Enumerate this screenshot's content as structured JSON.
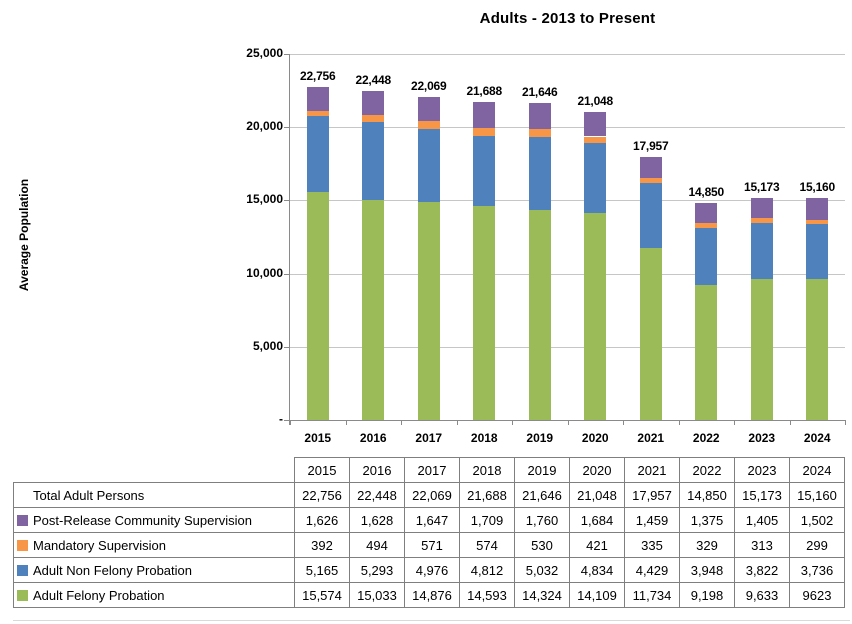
{
  "title": "Adults - 2013 to Present",
  "y_axis": {
    "title": "Average Population",
    "tick_labels": [
      "25,000",
      "20,000",
      "15,000",
      "10,000",
      "5,000",
      "-"
    ]
  },
  "colors": {
    "adult_felony_probation": "#9BBB59",
    "adult_non_felony_probation": "#4F81BD",
    "mandatory_supervision": "#F79646",
    "post_release_community_supervision": "#8064A2",
    "gridline": "#C6C6C6",
    "axis": "#8A8A8A",
    "table_border": "#7F7F7F"
  },
  "chart_data": {
    "type": "bar",
    "stacked": true,
    "title": "Adults - 2013 to Present",
    "xlabel": "",
    "ylabel": "Average Population",
    "ylim": [
      0,
      25000
    ],
    "grid": true,
    "legend_position": "table-rows-below",
    "categories": [
      "2015",
      "2016",
      "2017",
      "2018",
      "2019",
      "2020",
      "2021",
      "2022",
      "2023",
      "2024"
    ],
    "series": [
      {
        "name": "Adult Felony Probation",
        "color": "#9BBB59",
        "values": [
          15574,
          15033,
          14876,
          14593,
          14324,
          14109,
          11734,
          9198,
          9633,
          9623
        ]
      },
      {
        "name": "Adult Non Felony Probation",
        "color": "#4F81BD",
        "values": [
          5165,
          5293,
          4976,
          4812,
          5032,
          4834,
          4429,
          3948,
          3822,
          3736
        ]
      },
      {
        "name": "Mandatory Supervision",
        "color": "#F79646",
        "values": [
          392,
          494,
          571,
          574,
          530,
          421,
          335,
          329,
          313,
          299
        ]
      },
      {
        "name": "Post-Release Community Supervision",
        "color": "#8064A2",
        "values": [
          1626,
          1628,
          1647,
          1709,
          1760,
          1684,
          1459,
          1375,
          1405,
          1502
        ]
      }
    ],
    "totals": [
      22756,
      22448,
      22069,
      21688,
      21646,
      21048,
      17957,
      14850,
      15173,
      15160
    ],
    "total_labels": [
      "22,756",
      "22,448",
      "22,069",
      "21,688",
      "21,646",
      "21,048",
      "17,957",
      "14,850",
      "15,173",
      "15,160"
    ]
  },
  "table": {
    "header_years": [
      "2015",
      "2016",
      "2017",
      "2018",
      "2019",
      "2020",
      "2021",
      "2022",
      "2023",
      "2024"
    ],
    "rows": [
      {
        "label": "Total Adult Persons",
        "swatch": null,
        "values": [
          "22,756",
          "22,448",
          "22,069",
          "21,688",
          "21,646",
          "21,048",
          "17,957",
          "14,850",
          "15,173",
          "15,160"
        ]
      },
      {
        "label": "Post-Release Community Supervision",
        "swatch": "#8064A2",
        "values": [
          "1,626",
          "1,628",
          "1,647",
          "1,709",
          "1,760",
          "1,684",
          "1,459",
          "1,375",
          "1,405",
          "1,502"
        ]
      },
      {
        "label": "Mandatory Supervision",
        "swatch": "#F79646",
        "values": [
          "392",
          "494",
          "571",
          "574",
          "530",
          "421",
          "335",
          "329",
          "313",
          "299"
        ]
      },
      {
        "label": "Adult Non Felony Probation",
        "swatch": "#4F81BD",
        "values": [
          "5,165",
          "5,293",
          "4,976",
          "4,812",
          "5,032",
          "4,834",
          "4,429",
          "3,948",
          "3,822",
          "3,736"
        ]
      },
      {
        "label": "Adult Felony Probation",
        "swatch": "#9BBB59",
        "values": [
          "15,574",
          "15,033",
          "14,876",
          "14,593",
          "14,324",
          "14,109",
          "11,734",
          "9,198",
          "9,633",
          "9623"
        ]
      }
    ]
  }
}
